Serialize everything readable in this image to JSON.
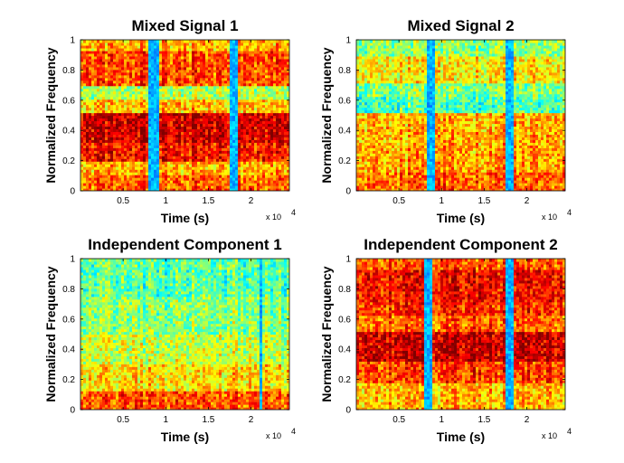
{
  "chart_data": [
    {
      "type": "heatmap",
      "title": "Mixed Signal 1",
      "xlabel": "Time (s)",
      "ylabel": "Normalized Frequency",
      "x_multiplier": "x 10",
      "x_multiplier_exponent": "4",
      "xlim": [
        0,
        2.45
      ],
      "ylim": [
        0,
        1
      ],
      "xticks": [
        "0.5",
        "1",
        "1.5",
        "2"
      ],
      "xtick_values": [
        0.5,
        1,
        1.5,
        2
      ],
      "yticks": [
        "0",
        "0.2",
        "0.4",
        "0.6",
        "0.8",
        "1"
      ],
      "ytick_values": [
        0,
        0.2,
        0.4,
        0.6,
        0.8,
        1
      ],
      "colormap": "jet",
      "band_energy": [
        {
          "f_low": 0.0,
          "f_high": 0.1,
          "level": 0.78
        },
        {
          "f_low": 0.1,
          "f_high": 0.2,
          "level": 0.7
        },
        {
          "f_low": 0.2,
          "f_high": 0.33,
          "level": 0.86
        },
        {
          "f_low": 0.33,
          "f_high": 0.52,
          "level": 0.92
        },
        {
          "f_low": 0.52,
          "f_high": 0.6,
          "level": 0.68
        },
        {
          "f_low": 0.6,
          "f_high": 0.7,
          "level": 0.55
        },
        {
          "f_low": 0.7,
          "f_high": 0.92,
          "level": 0.8
        },
        {
          "f_low": 0.92,
          "f_high": 1.0,
          "level": 0.7
        }
      ],
      "silent_intervals": [
        [
          0.8,
          0.92
        ],
        [
          1.76,
          1.86
        ]
      ]
    },
    {
      "type": "heatmap",
      "title": "Mixed Signal 2",
      "xlabel": "Time (s)",
      "ylabel": "Normalized Frequency",
      "x_multiplier": "x 10",
      "x_multiplier_exponent": "4",
      "xlim": [
        0,
        2.45
      ],
      "ylim": [
        0,
        1
      ],
      "xticks": [
        "0.5",
        "1",
        "1.5",
        "2"
      ],
      "xtick_values": [
        0.5,
        1,
        1.5,
        2
      ],
      "yticks": [
        "0",
        "0.2",
        "0.4",
        "0.6",
        "0.8",
        "1"
      ],
      "ytick_values": [
        0,
        0.2,
        0.4,
        0.6,
        0.8,
        1
      ],
      "colormap": "jet",
      "band_energy": [
        {
          "f_low": 0.0,
          "f_high": 0.12,
          "level": 0.78
        },
        {
          "f_low": 0.12,
          "f_high": 0.3,
          "level": 0.72
        },
        {
          "f_low": 0.3,
          "f_high": 0.52,
          "level": 0.7
        },
        {
          "f_low": 0.52,
          "f_high": 0.62,
          "level": 0.45
        },
        {
          "f_low": 0.62,
          "f_high": 0.72,
          "level": 0.5
        },
        {
          "f_low": 0.72,
          "f_high": 0.9,
          "level": 0.64
        },
        {
          "f_low": 0.9,
          "f_high": 1.0,
          "level": 0.52
        }
      ],
      "silent_intervals": [
        [
          0.82,
          0.92
        ],
        [
          1.76,
          1.84
        ]
      ]
    },
    {
      "type": "heatmap",
      "title": "Independent Component 1",
      "xlabel": "Time (s)",
      "ylabel": "Normalized Frequency",
      "x_multiplier": "x 10",
      "x_multiplier_exponent": "4",
      "xlim": [
        0,
        2.45
      ],
      "ylim": [
        0,
        1
      ],
      "xticks": [
        "0.5",
        "1",
        "1.5",
        "2"
      ],
      "xtick_values": [
        0.5,
        1,
        1.5,
        2
      ],
      "yticks": [
        "0",
        "0.2",
        "0.4",
        "0.6",
        "0.8",
        "1"
      ],
      "ytick_values": [
        0,
        0.2,
        0.4,
        0.6,
        0.8,
        1
      ],
      "colormap": "jet",
      "band_energy": [
        {
          "f_low": 0.0,
          "f_high": 0.12,
          "level": 0.8
        },
        {
          "f_low": 0.12,
          "f_high": 0.3,
          "level": 0.66
        },
        {
          "f_low": 0.3,
          "f_high": 0.5,
          "level": 0.58
        },
        {
          "f_low": 0.5,
          "f_high": 0.75,
          "level": 0.52
        },
        {
          "f_low": 0.75,
          "f_high": 1.0,
          "level": 0.47
        }
      ],
      "silent_intervals": [
        [
          2.1,
          2.13
        ]
      ]
    },
    {
      "type": "heatmap",
      "title": "Independent Component 2",
      "xlabel": "Time (s)",
      "ylabel": "Normalized Frequency",
      "x_multiplier": "x 10",
      "x_multiplier_exponent": "4",
      "xlim": [
        0,
        2.45
      ],
      "ylim": [
        0,
        1
      ],
      "xticks": [
        "0.5",
        "1",
        "1.5",
        "2"
      ],
      "xtick_values": [
        0.5,
        1,
        1.5,
        2
      ],
      "yticks": [
        "0",
        "0.2",
        "0.4",
        "0.6",
        "0.8",
        "1"
      ],
      "ytick_values": [
        0,
        0.2,
        0.4,
        0.6,
        0.8,
        1
      ],
      "colormap": "jet",
      "band_energy": [
        {
          "f_low": 0.0,
          "f_high": 0.18,
          "level": 0.7
        },
        {
          "f_low": 0.18,
          "f_high": 0.33,
          "level": 0.82
        },
        {
          "f_low": 0.33,
          "f_high": 0.52,
          "level": 0.93
        },
        {
          "f_low": 0.52,
          "f_high": 0.62,
          "level": 0.78
        },
        {
          "f_low": 0.62,
          "f_high": 0.72,
          "level": 0.84
        },
        {
          "f_low": 0.72,
          "f_high": 0.92,
          "level": 0.88
        },
        {
          "f_low": 0.92,
          "f_high": 1.0,
          "level": 0.8
        }
      ],
      "silent_intervals": [
        [
          0.81,
          0.88
        ],
        [
          1.75,
          1.83
        ]
      ]
    }
  ]
}
